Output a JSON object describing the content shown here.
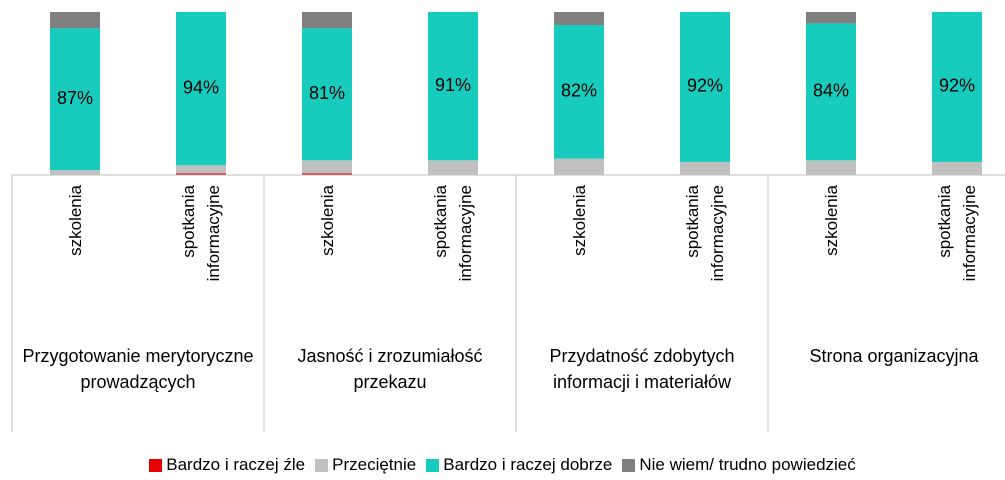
{
  "chart_data": {
    "type": "stacked_bar",
    "categories": [
      "szkolenia",
      "spotkania informacyjne",
      "szkolenia",
      "spotkania informacyjne",
      "szkolenia",
      "spotkania informacyjne",
      "szkolenia",
      "spotkania informacyjne"
    ],
    "groups": [
      "Przygotowanie merytoryczne prowadzących",
      "Jasność i zrozumiałość przekazu",
      "Przydatność zdobytych informacji i materiałów",
      "Strona organizacyjna"
    ],
    "ylim": [
      0,
      100
    ],
    "series": [
      {
        "name": "Bardzo i raczej źle",
        "color": "#e60000",
        "values": [
          0,
          1,
          1,
          0,
          0,
          0,
          0,
          0
        ]
      },
      {
        "name": "Przeciętnie",
        "color": "#c0c0c0",
        "values": [
          3,
          5,
          8,
          9,
          10,
          8,
          9,
          8
        ]
      },
      {
        "name": "Bardzo i raczej dobrze",
        "color": "#17cbbd",
        "values": [
          87,
          94,
          81,
          91,
          82,
          92,
          84,
          92
        ],
        "value_labels": [
          "87%",
          "94%",
          "81%",
          "91%",
          "82%",
          "92%",
          "84%",
          "92%"
        ]
      },
      {
        "name": "Nie wiem/ trudno powiedzieć",
        "color": "#808080",
        "values": [
          10,
          0,
          10,
          0,
          8,
          0,
          7,
          0
        ]
      }
    ]
  }
}
